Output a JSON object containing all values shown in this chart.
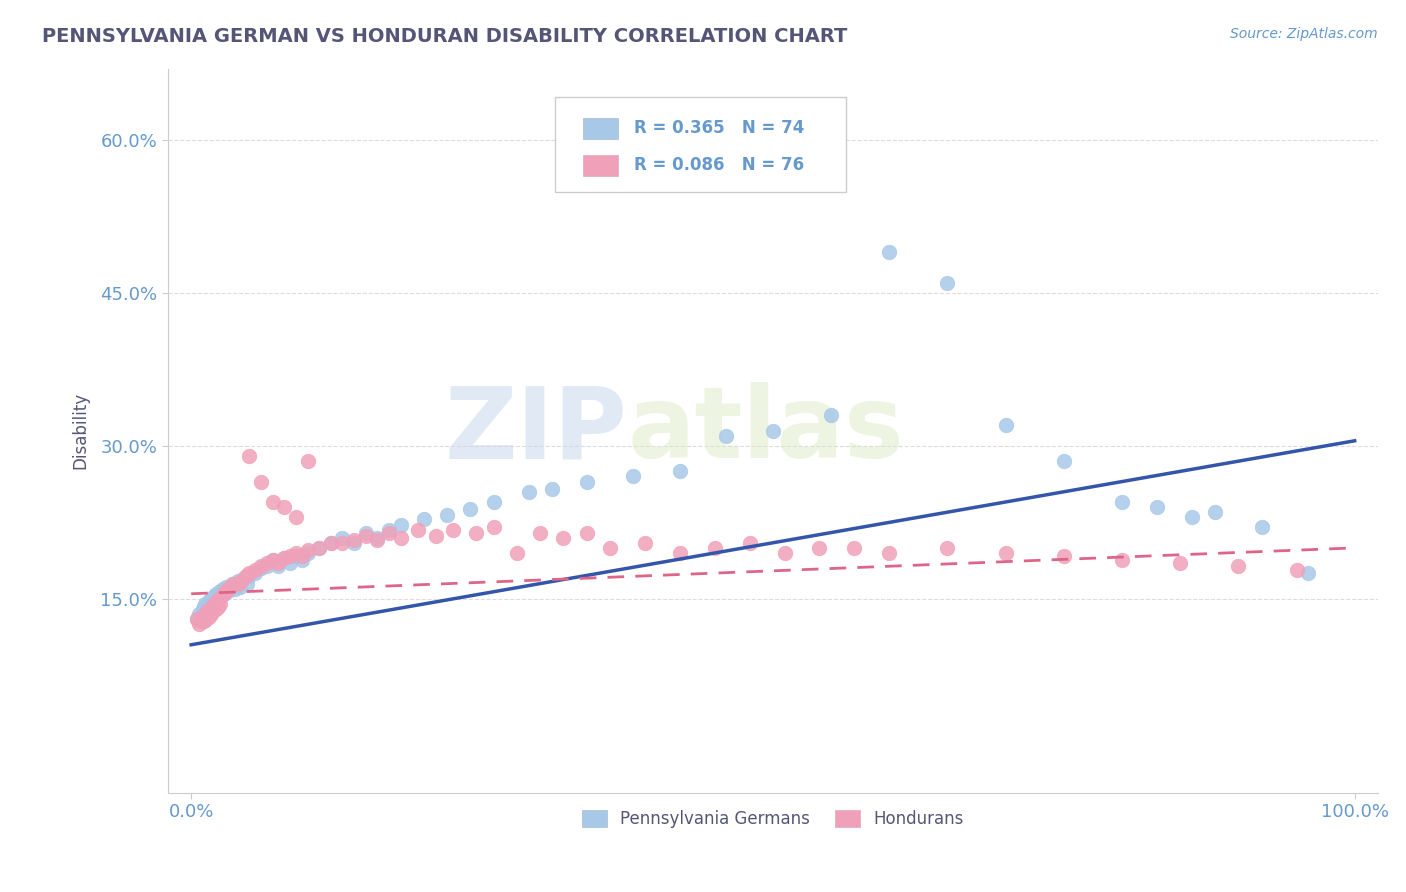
{
  "title": "PENNSYLVANIA GERMAN VS HONDURAN DISABILITY CORRELATION CHART",
  "source_text": "Source: ZipAtlas.com",
  "ylabel": "Disability",
  "xlim": [
    -0.02,
    1.02
  ],
  "ylim": [
    -0.04,
    0.67
  ],
  "yticks": [
    0.15,
    0.3,
    0.45,
    0.6
  ],
  "ytick_labels": [
    "15.0%",
    "30.0%",
    "45.0%",
    "60.0%"
  ],
  "xticks": [
    0.0,
    1.0
  ],
  "xtick_labels": [
    "0.0%",
    "100.0%"
  ],
  "blue_color": "#A8C8E8",
  "pink_color": "#F0A0B8",
  "blue_line_color": "#3355AA",
  "pink_line_color": "#DD6688",
  "pink_line_dash": [
    6,
    4
  ],
  "legend_blue_r": "R = 0.365",
  "legend_blue_n": "N = 74",
  "legend_pink_r": "R = 0.086",
  "legend_pink_n": "N = 76",
  "title_color": "#555577",
  "axis_color": "#6699CC",
  "watermark_zip": "ZIP",
  "watermark_atlas": "atlas",
  "grid_color": "#DDDDDD",
  "background_color": "#FFFFFF",
  "blue_trend": [
    0.105,
    0.305
  ],
  "pink_trend": [
    0.155,
    0.2
  ],
  "blue_x": [
    0.005,
    0.007,
    0.008,
    0.009,
    0.01,
    0.01,
    0.011,
    0.012,
    0.013,
    0.014,
    0.015,
    0.015,
    0.016,
    0.017,
    0.018,
    0.019,
    0.02,
    0.021,
    0.022,
    0.023,
    0.024,
    0.025,
    0.026,
    0.027,
    0.028,
    0.03,
    0.032,
    0.035,
    0.038,
    0.04,
    0.042,
    0.045,
    0.048,
    0.05,
    0.055,
    0.06,
    0.065,
    0.07,
    0.075,
    0.08,
    0.085,
    0.09,
    0.095,
    0.1,
    0.11,
    0.12,
    0.13,
    0.14,
    0.15,
    0.16,
    0.17,
    0.18,
    0.2,
    0.22,
    0.24,
    0.26,
    0.29,
    0.31,
    0.34,
    0.38,
    0.42,
    0.46,
    0.5,
    0.55,
    0.6,
    0.65,
    0.7,
    0.75,
    0.8,
    0.83,
    0.86,
    0.88,
    0.92,
    0.96
  ],
  "blue_y": [
    0.13,
    0.135,
    0.128,
    0.133,
    0.14,
    0.138,
    0.142,
    0.145,
    0.138,
    0.142,
    0.14,
    0.148,
    0.144,
    0.15,
    0.145,
    0.152,
    0.148,
    0.155,
    0.15,
    0.155,
    0.152,
    0.158,
    0.154,
    0.16,
    0.155,
    0.162,
    0.158,
    0.165,
    0.16,
    0.168,
    0.162,
    0.17,
    0.165,
    0.172,
    0.175,
    0.18,
    0.182,
    0.188,
    0.182,
    0.19,
    0.185,
    0.192,
    0.188,
    0.195,
    0.2,
    0.205,
    0.21,
    0.205,
    0.215,
    0.21,
    0.218,
    0.222,
    0.228,
    0.232,
    0.238,
    0.245,
    0.255,
    0.258,
    0.265,
    0.27,
    0.275,
    0.31,
    0.315,
    0.33,
    0.49,
    0.46,
    0.32,
    0.285,
    0.245,
    0.24,
    0.23,
    0.235,
    0.22,
    0.175
  ],
  "pink_x": [
    0.005,
    0.007,
    0.009,
    0.01,
    0.011,
    0.012,
    0.013,
    0.014,
    0.015,
    0.016,
    0.017,
    0.018,
    0.019,
    0.02,
    0.021,
    0.022,
    0.023,
    0.024,
    0.025,
    0.027,
    0.03,
    0.033,
    0.036,
    0.04,
    0.043,
    0.047,
    0.05,
    0.055,
    0.06,
    0.065,
    0.07,
    0.075,
    0.08,
    0.085,
    0.09,
    0.095,
    0.1,
    0.11,
    0.12,
    0.13,
    0.14,
    0.15,
    0.16,
    0.17,
    0.18,
    0.195,
    0.21,
    0.225,
    0.245,
    0.26,
    0.28,
    0.3,
    0.32,
    0.34,
    0.36,
    0.39,
    0.42,
    0.45,
    0.48,
    0.51,
    0.54,
    0.57,
    0.6,
    0.65,
    0.7,
    0.75,
    0.8,
    0.85,
    0.9,
    0.95,
    0.1,
    0.05,
    0.06,
    0.07,
    0.08,
    0.09
  ],
  "pink_y": [
    0.13,
    0.125,
    0.128,
    0.132,
    0.128,
    0.135,
    0.13,
    0.138,
    0.132,
    0.14,
    0.135,
    0.142,
    0.138,
    0.145,
    0.14,
    0.148,
    0.142,
    0.15,
    0.145,
    0.155,
    0.158,
    0.162,
    0.165,
    0.165,
    0.168,
    0.172,
    0.175,
    0.178,
    0.182,
    0.185,
    0.188,
    0.185,
    0.19,
    0.192,
    0.195,
    0.192,
    0.198,
    0.2,
    0.205,
    0.205,
    0.208,
    0.212,
    0.208,
    0.215,
    0.21,
    0.218,
    0.212,
    0.218,
    0.215,
    0.22,
    0.195,
    0.215,
    0.21,
    0.215,
    0.2,
    0.205,
    0.195,
    0.2,
    0.205,
    0.195,
    0.2,
    0.2,
    0.195,
    0.2,
    0.195,
    0.192,
    0.188,
    0.185,
    0.182,
    0.178,
    0.285,
    0.29,
    0.265,
    0.245,
    0.24,
    0.23
  ]
}
